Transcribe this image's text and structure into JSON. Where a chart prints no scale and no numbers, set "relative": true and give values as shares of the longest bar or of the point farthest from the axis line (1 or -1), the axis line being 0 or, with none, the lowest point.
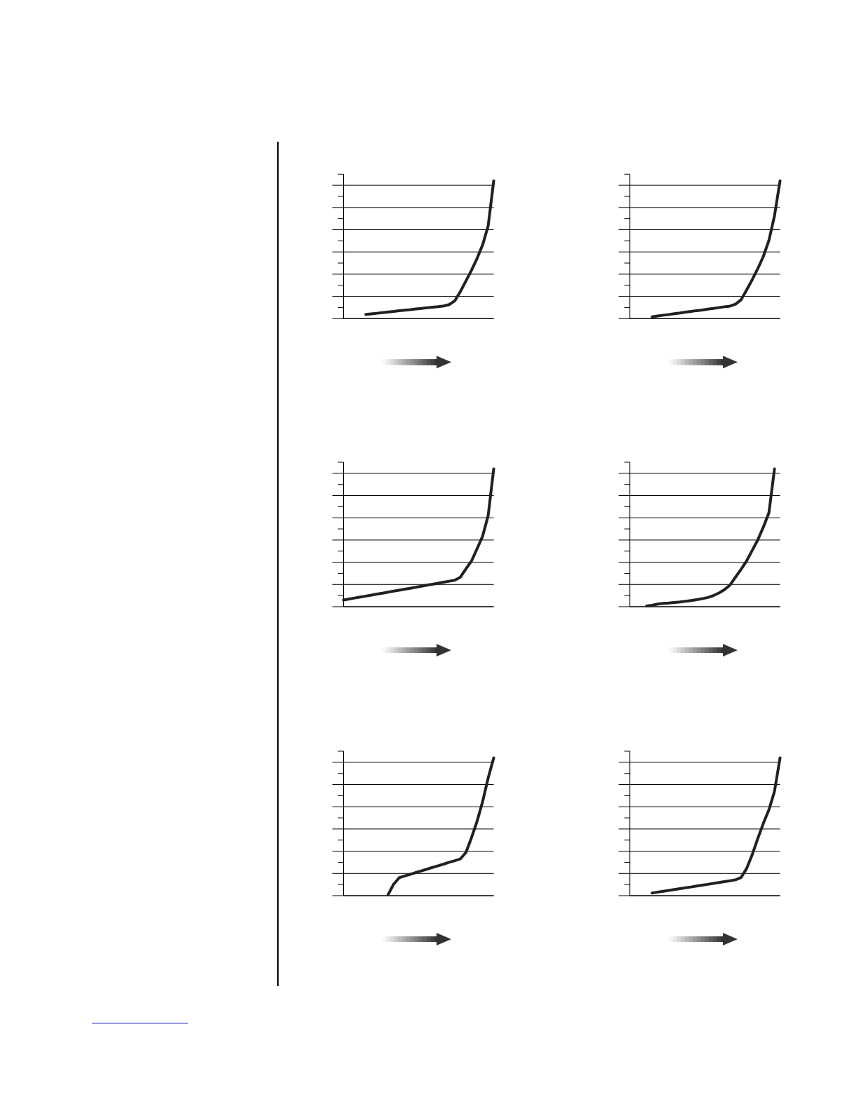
{
  "chart_data": [
    {
      "type": "line",
      "relative": true,
      "grid": "y",
      "color": "#231f20",
      "categories": [
        null,
        null,
        null,
        null,
        null,
        null,
        null,
        null,
        null,
        null,
        null,
        null,
        null,
        null,
        null,
        null,
        null,
        null,
        null,
        null,
        null,
        null,
        null,
        null,
        null,
        null,
        null,
        null
      ],
      "values": [
        null,
        null,
        null,
        null,
        0.031,
        0.035,
        0.039,
        0.044,
        0.048,
        0.052,
        0.057,
        0.061,
        0.065,
        0.07,
        0.074,
        0.079,
        0.083,
        0.087,
        0.092,
        0.102,
        0.129,
        0.196,
        0.273,
        0.351,
        0.436,
        0.534,
        0.673,
        1
      ]
    },
    {
      "type": "line",
      "relative": true,
      "grid": "y",
      "color": "#231f20",
      "categories": [
        null,
        null,
        null,
        null,
        null,
        null,
        null,
        null,
        null,
        null,
        null,
        null,
        null,
        null,
        null,
        null,
        null,
        null,
        null,
        null,
        null,
        null,
        null,
        null,
        null,
        null,
        null,
        null
      ],
      "values": [
        null,
        null,
        null,
        null,
        0.013,
        0.019,
        0.025,
        0.03,
        0.036,
        0.041,
        0.047,
        0.052,
        0.058,
        0.063,
        0.069,
        0.074,
        0.08,
        0.086,
        0.091,
        0.105,
        0.137,
        0.209,
        0.283,
        0.363,
        0.452,
        0.568,
        0.746,
        1
      ]
    },
    {
      "type": "line",
      "relative": true,
      "grid": "y",
      "color": "#231f20",
      "categories": [
        null,
        null,
        null,
        null,
        null,
        null,
        null,
        null,
        null,
        null,
        null,
        null,
        null,
        null,
        null,
        null,
        null,
        null,
        null,
        null,
        null,
        null,
        null,
        null,
        null,
        null,
        null,
        null
      ],
      "values": [
        0.048,
        0.056,
        0.063,
        0.07,
        0.077,
        0.084,
        0.092,
        0.098,
        0.106,
        0.113,
        0.12,
        0.127,
        0.134,
        0.141,
        0.149,
        0.156,
        0.163,
        0.17,
        0.178,
        0.185,
        0.192,
        0.214,
        0.274,
        0.331,
        0.42,
        0.511,
        0.662,
        1
      ]
    },
    {
      "type": "line",
      "relative": true,
      "grid": "y",
      "color": "#231f20",
      "categories": [
        null,
        null,
        null,
        null,
        null,
        null,
        null,
        null,
        null,
        null,
        null,
        null,
        null,
        null,
        null,
        null,
        null,
        null,
        null,
        null,
        null,
        null,
        null,
        null,
        null,
        null,
        null,
        null
      ],
      "values": [
        null,
        null,
        null,
        0.005,
        0.01,
        0.019,
        0.024,
        0.027,
        0.031,
        0.034,
        0.039,
        0.044,
        0.051,
        0.058,
        0.067,
        0.08,
        0.099,
        0.123,
        0.157,
        0.215,
        0.272,
        0.333,
        0.409,
        0.485,
        0.578,
        0.682,
        1,
        null
      ]
    },
    {
      "type": "line",
      "relative": true,
      "grid": "y",
      "color": "#231f20",
      "categories": [
        null,
        null,
        null,
        null,
        null,
        null,
        null,
        null,
        null,
        null,
        null,
        null,
        null,
        null,
        null,
        null,
        null,
        null,
        null,
        null,
        null,
        null,
        null,
        null,
        null,
        null,
        null,
        null
      ],
      "values": [
        null,
        null,
        null,
        null,
        null,
        null,
        null,
        null,
        0.006,
        0.083,
        0.13,
        0.143,
        0.155,
        0.168,
        0.18,
        0.192,
        0.205,
        0.217,
        0.229,
        0.242,
        0.254,
        0.267,
        0.313,
        0.42,
        0.539,
        0.682,
        0.854,
        1
      ]
    },
    {
      "type": "line",
      "relative": true,
      "grid": "y",
      "color": "#231f20",
      "categories": [
        null,
        null,
        null,
        null,
        null,
        null,
        null,
        null,
        null,
        null,
        null,
        null,
        null,
        null,
        null,
        null,
        null,
        null,
        null,
        null,
        null,
        null,
        null,
        null,
        null,
        null,
        null,
        null
      ],
      "values": [
        null,
        null,
        null,
        null,
        0.019,
        0.026,
        0.032,
        0.038,
        0.045,
        0.051,
        0.057,
        0.063,
        0.07,
        0.076,
        0.082,
        0.089,
        0.095,
        0.102,
        0.108,
        0.115,
        0.132,
        0.198,
        0.298,
        0.415,
        0.525,
        0.623,
        0.757,
        1
      ]
    }
  ]
}
